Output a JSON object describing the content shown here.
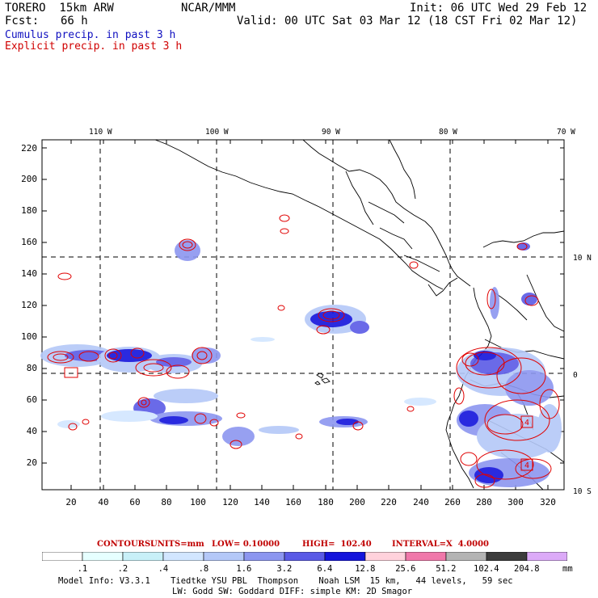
{
  "header": {
    "model": "TORERO  15km ARW",
    "org": "NCAR/MMM",
    "init": "Init: 06 UTC Wed 29 Feb 12",
    "fcst_label": "Fcst:",
    "fcst_value": "66 h",
    "valid": "Valid: 00 UTC Sat 03 Mar 12 (18 CST Fri 02 Mar 12)"
  },
  "legend": {
    "cumulus": "Cumulus precip. in past 3 h",
    "explicit": "Explicit precip. in past 3 h"
  },
  "map": {
    "top_lon_labels": [
      "110 W",
      "100 W",
      "90 W",
      "80 W",
      "70 W"
    ],
    "right_lat_labels": [
      "10 N",
      "0",
      "10 S"
    ],
    "y_ticks": [
      "220",
      "200",
      "180",
      "160",
      "140",
      "120",
      "100",
      "80",
      "60",
      "40",
      "20"
    ],
    "x_ticks": [
      "20",
      "40",
      "60",
      "80",
      "100",
      "120",
      "140",
      "160",
      "180",
      "200",
      "220",
      "240",
      "260",
      "280",
      "300",
      "320"
    ],
    "contour_marks": [
      "4",
      "4"
    ]
  },
  "contours_info": {
    "label": "CONTOURS:",
    "units": "UNITS=mm",
    "low": "LOW= 0.10000",
    "high": "HIGH=  102.40",
    "interval": "INTERVAL=X  4.0000"
  },
  "colorbar": {
    "labels": [
      ".1",
      ".2",
      ".4",
      ".8",
      "1.6",
      "3.2",
      "6.4",
      "12.8",
      "25.6",
      "51.2",
      "102.4",
      "204.8"
    ],
    "unit": "mm",
    "colors": [
      "#ffffff",
      "#e6ffff",
      "#c8f0f8",
      "#d2e6ff",
      "#b4c8f8",
      "#8c96f0",
      "#5a5ae6",
      "#1414dc",
      "#ffd2dc",
      "#f078aa",
      "#b4b4b4",
      "#3c3c3c",
      "#dcaaf8"
    ]
  },
  "footer": {
    "line1": "Model Info: V3.3.1    Tiedtke YSU PBL  Thompson    Noah LSM  15 km,   44 levels,   59 sec",
    "line2": "LW: Godd SW: Goddard DIFF: simple KM: 2D Smagor"
  }
}
